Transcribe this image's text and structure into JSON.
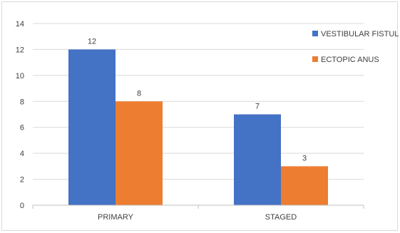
{
  "chart_data": {
    "type": "bar",
    "categories": [
      "PRIMARY",
      "STAGED"
    ],
    "series": [
      {
        "name": "VESTIBULAR FISTUL",
        "values": [
          12,
          7
        ],
        "color": "#4472C4"
      },
      {
        "name": "ECTOPIC ANUS",
        "values": [
          8,
          3
        ],
        "color": "#ED7D31"
      }
    ],
    "ylim": [
      0,
      14
    ],
    "yticks": [
      0,
      2,
      4,
      6,
      8,
      10,
      12,
      14
    ],
    "grid": true,
    "legend_position": "right"
  }
}
